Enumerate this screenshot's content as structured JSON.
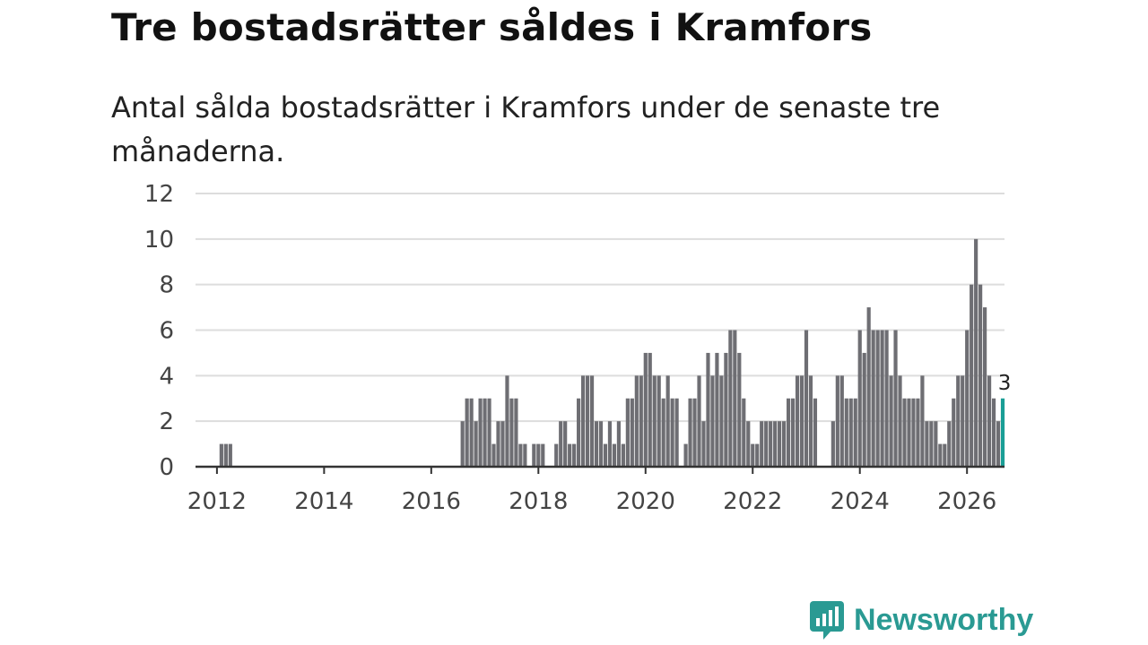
{
  "header": {
    "title": "Tre bostadsrätter såldes i Kramfors",
    "subtitle": "Antal sålda bostadsrätter i Kramfors under de senaste tre månaderna."
  },
  "brand": {
    "name": "Newsworthy",
    "color": "#2a9a93"
  },
  "chart_data": {
    "type": "bar",
    "title": "Tre bostadsrätter såldes i Kramfors",
    "subtitle": "Antal sålda bostadsrätter i Kramfors under de senaste tre månaderna.",
    "xlabel": "",
    "ylabel": "",
    "x_unit": "month",
    "start_month": "2012-01",
    "ylim": [
      0,
      12
    ],
    "xlim": [
      2011.6,
      2026.7
    ],
    "yticks": [
      "0",
      "2",
      "4",
      "6",
      "8",
      "10",
      "12"
    ],
    "xticks": [
      "2012",
      "2014",
      "2016",
      "2018",
      "2020",
      "2022",
      "2024",
      "2026"
    ],
    "grid": true,
    "bar_color": "#6e6e73",
    "highlight_color": "#1a9e96",
    "highlight_label": "3",
    "values": [
      0,
      1,
      1,
      1,
      0,
      0,
      0,
      0,
      0,
      0,
      0,
      0,
      0,
      0,
      0,
      0,
      0,
      0,
      0,
      0,
      0,
      0,
      0,
      0,
      0,
      0,
      0,
      0,
      0,
      0,
      0,
      0,
      0,
      0,
      0,
      0,
      0,
      0,
      0,
      0,
      0,
      0,
      0,
      0,
      0,
      0,
      0,
      0,
      0,
      0,
      0,
      0,
      0,
      0,
      0,
      2,
      3,
      3,
      2,
      3,
      3,
      3,
      1,
      2,
      2,
      4,
      3,
      3,
      1,
      1,
      0,
      1,
      1,
      1,
      0,
      0,
      1,
      2,
      2,
      1,
      1,
      3,
      4,
      4,
      4,
      2,
      2,
      1,
      2,
      1,
      2,
      1,
      3,
      3,
      4,
      4,
      5,
      5,
      4,
      4,
      3,
      4,
      3,
      3,
      0,
      1,
      3,
      3,
      4,
      2,
      5,
      4,
      5,
      4,
      5,
      6,
      6,
      5,
      3,
      2,
      1,
      1,
      2,
      2,
      2,
      2,
      2,
      2,
      3,
      3,
      4,
      4,
      6,
      4,
      3,
      0,
      0,
      0,
      2,
      4,
      4,
      3,
      3,
      3,
      6,
      5,
      7,
      6,
      6,
      6,
      6,
      4,
      6,
      4,
      3,
      3,
      3,
      3,
      4,
      2,
      2,
      2,
      1,
      1,
      2,
      3,
      4,
      4,
      6,
      8,
      10,
      8,
      7,
      4,
      3,
      2,
      3
    ]
  }
}
